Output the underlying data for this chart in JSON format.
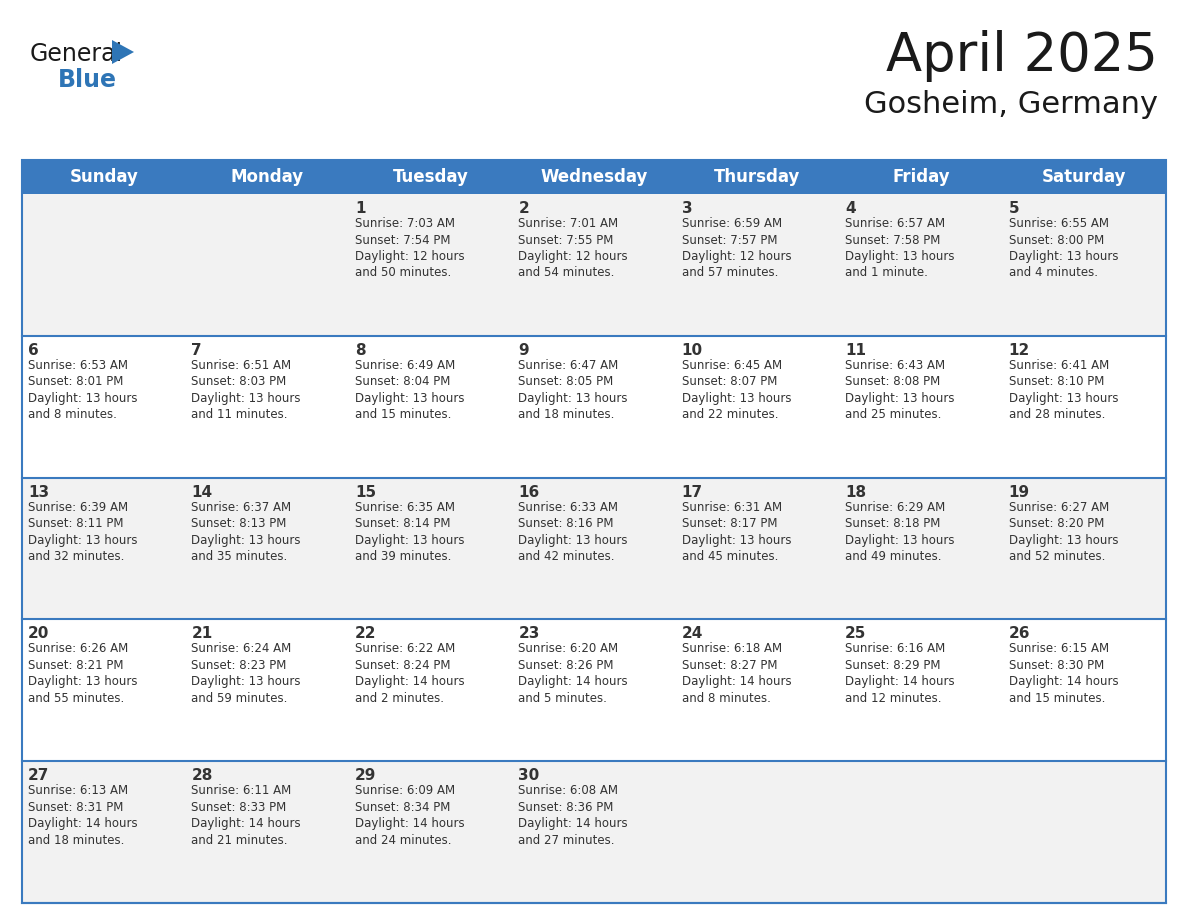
{
  "title": "April 2025",
  "subtitle": "Gosheim, Germany",
  "header_bg_color": "#3a7abf",
  "header_text_color": "#ffffff",
  "even_row_bg": "#f2f2f2",
  "odd_row_bg": "#ffffff",
  "row_separator_color": "#3a7abf",
  "text_color": "#333333",
  "day_headers": [
    "Sunday",
    "Monday",
    "Tuesday",
    "Wednesday",
    "Thursday",
    "Friday",
    "Saturday"
  ],
  "weeks": [
    [
      {
        "day": "",
        "info": ""
      },
      {
        "day": "",
        "info": ""
      },
      {
        "day": "1",
        "info": "Sunrise: 7:03 AM\nSunset: 7:54 PM\nDaylight: 12 hours\nand 50 minutes."
      },
      {
        "day": "2",
        "info": "Sunrise: 7:01 AM\nSunset: 7:55 PM\nDaylight: 12 hours\nand 54 minutes."
      },
      {
        "day": "3",
        "info": "Sunrise: 6:59 AM\nSunset: 7:57 PM\nDaylight: 12 hours\nand 57 minutes."
      },
      {
        "day": "4",
        "info": "Sunrise: 6:57 AM\nSunset: 7:58 PM\nDaylight: 13 hours\nand 1 minute."
      },
      {
        "day": "5",
        "info": "Sunrise: 6:55 AM\nSunset: 8:00 PM\nDaylight: 13 hours\nand 4 minutes."
      }
    ],
    [
      {
        "day": "6",
        "info": "Sunrise: 6:53 AM\nSunset: 8:01 PM\nDaylight: 13 hours\nand 8 minutes."
      },
      {
        "day": "7",
        "info": "Sunrise: 6:51 AM\nSunset: 8:03 PM\nDaylight: 13 hours\nand 11 minutes."
      },
      {
        "day": "8",
        "info": "Sunrise: 6:49 AM\nSunset: 8:04 PM\nDaylight: 13 hours\nand 15 minutes."
      },
      {
        "day": "9",
        "info": "Sunrise: 6:47 AM\nSunset: 8:05 PM\nDaylight: 13 hours\nand 18 minutes."
      },
      {
        "day": "10",
        "info": "Sunrise: 6:45 AM\nSunset: 8:07 PM\nDaylight: 13 hours\nand 22 minutes."
      },
      {
        "day": "11",
        "info": "Sunrise: 6:43 AM\nSunset: 8:08 PM\nDaylight: 13 hours\nand 25 minutes."
      },
      {
        "day": "12",
        "info": "Sunrise: 6:41 AM\nSunset: 8:10 PM\nDaylight: 13 hours\nand 28 minutes."
      }
    ],
    [
      {
        "day": "13",
        "info": "Sunrise: 6:39 AM\nSunset: 8:11 PM\nDaylight: 13 hours\nand 32 minutes."
      },
      {
        "day": "14",
        "info": "Sunrise: 6:37 AM\nSunset: 8:13 PM\nDaylight: 13 hours\nand 35 minutes."
      },
      {
        "day": "15",
        "info": "Sunrise: 6:35 AM\nSunset: 8:14 PM\nDaylight: 13 hours\nand 39 minutes."
      },
      {
        "day": "16",
        "info": "Sunrise: 6:33 AM\nSunset: 8:16 PM\nDaylight: 13 hours\nand 42 minutes."
      },
      {
        "day": "17",
        "info": "Sunrise: 6:31 AM\nSunset: 8:17 PM\nDaylight: 13 hours\nand 45 minutes."
      },
      {
        "day": "18",
        "info": "Sunrise: 6:29 AM\nSunset: 8:18 PM\nDaylight: 13 hours\nand 49 minutes."
      },
      {
        "day": "19",
        "info": "Sunrise: 6:27 AM\nSunset: 8:20 PM\nDaylight: 13 hours\nand 52 minutes."
      }
    ],
    [
      {
        "day": "20",
        "info": "Sunrise: 6:26 AM\nSunset: 8:21 PM\nDaylight: 13 hours\nand 55 minutes."
      },
      {
        "day": "21",
        "info": "Sunrise: 6:24 AM\nSunset: 8:23 PM\nDaylight: 13 hours\nand 59 minutes."
      },
      {
        "day": "22",
        "info": "Sunrise: 6:22 AM\nSunset: 8:24 PM\nDaylight: 14 hours\nand 2 minutes."
      },
      {
        "day": "23",
        "info": "Sunrise: 6:20 AM\nSunset: 8:26 PM\nDaylight: 14 hours\nand 5 minutes."
      },
      {
        "day": "24",
        "info": "Sunrise: 6:18 AM\nSunset: 8:27 PM\nDaylight: 14 hours\nand 8 minutes."
      },
      {
        "day": "25",
        "info": "Sunrise: 6:16 AM\nSunset: 8:29 PM\nDaylight: 14 hours\nand 12 minutes."
      },
      {
        "day": "26",
        "info": "Sunrise: 6:15 AM\nSunset: 8:30 PM\nDaylight: 14 hours\nand 15 minutes."
      }
    ],
    [
      {
        "day": "27",
        "info": "Sunrise: 6:13 AM\nSunset: 8:31 PM\nDaylight: 14 hours\nand 18 minutes."
      },
      {
        "day": "28",
        "info": "Sunrise: 6:11 AM\nSunset: 8:33 PM\nDaylight: 14 hours\nand 21 minutes."
      },
      {
        "day": "29",
        "info": "Sunrise: 6:09 AM\nSunset: 8:34 PM\nDaylight: 14 hours\nand 24 minutes."
      },
      {
        "day": "30",
        "info": "Sunrise: 6:08 AM\nSunset: 8:36 PM\nDaylight: 14 hours\nand 27 minutes."
      },
      {
        "day": "",
        "info": ""
      },
      {
        "day": "",
        "info": ""
      },
      {
        "day": "",
        "info": ""
      }
    ]
  ],
  "logo_general_color": "#222222",
  "logo_blue_color": "#2e75b6",
  "logo_triangle_color": "#2e75b6",
  "title_fontsize": 38,
  "subtitle_fontsize": 22,
  "header_fontsize": 12,
  "day_num_fontsize": 11,
  "info_fontsize": 8.5
}
